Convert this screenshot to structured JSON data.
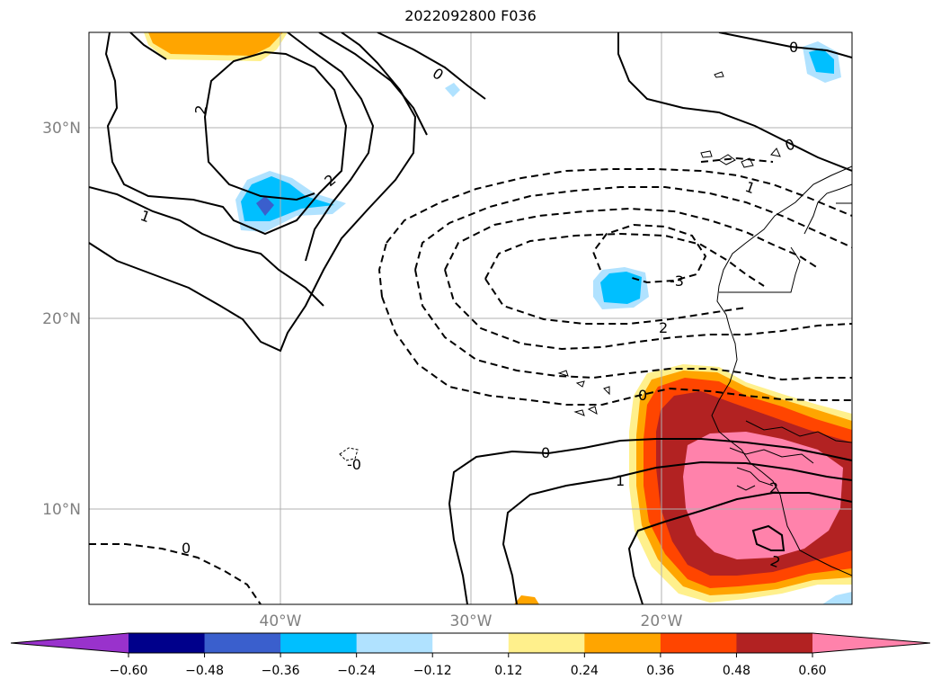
{
  "title": "2022092800 F036",
  "map": {
    "lat_labels": [
      "30°N",
      "20°N",
      "10°N"
    ],
    "lon_labels": [
      "40°W",
      "30°W",
      "20°W"
    ],
    "contour_labels": [
      "0",
      "2",
      "2",
      "1",
      "0",
      "0",
      "1",
      "-3",
      "2",
      "0",
      "0",
      "1",
      "2",
      "2",
      "-0",
      "0"
    ]
  },
  "colorbar": {
    "tick_labels": [
      "−0.60",
      "−0.48",
      "−0.36",
      "−0.24",
      "−0.12",
      "0.12",
      "0.24",
      "0.36",
      "0.48",
      "0.60"
    ],
    "colors": [
      "#9932cc",
      "#00008b",
      "#3a5fcd",
      "#00bfff",
      "#b0e2ff",
      "#ffffff",
      "#fff08c",
      "#ffa500",
      "#ff4500",
      "#b22222",
      "#ff82ab"
    ]
  }
}
